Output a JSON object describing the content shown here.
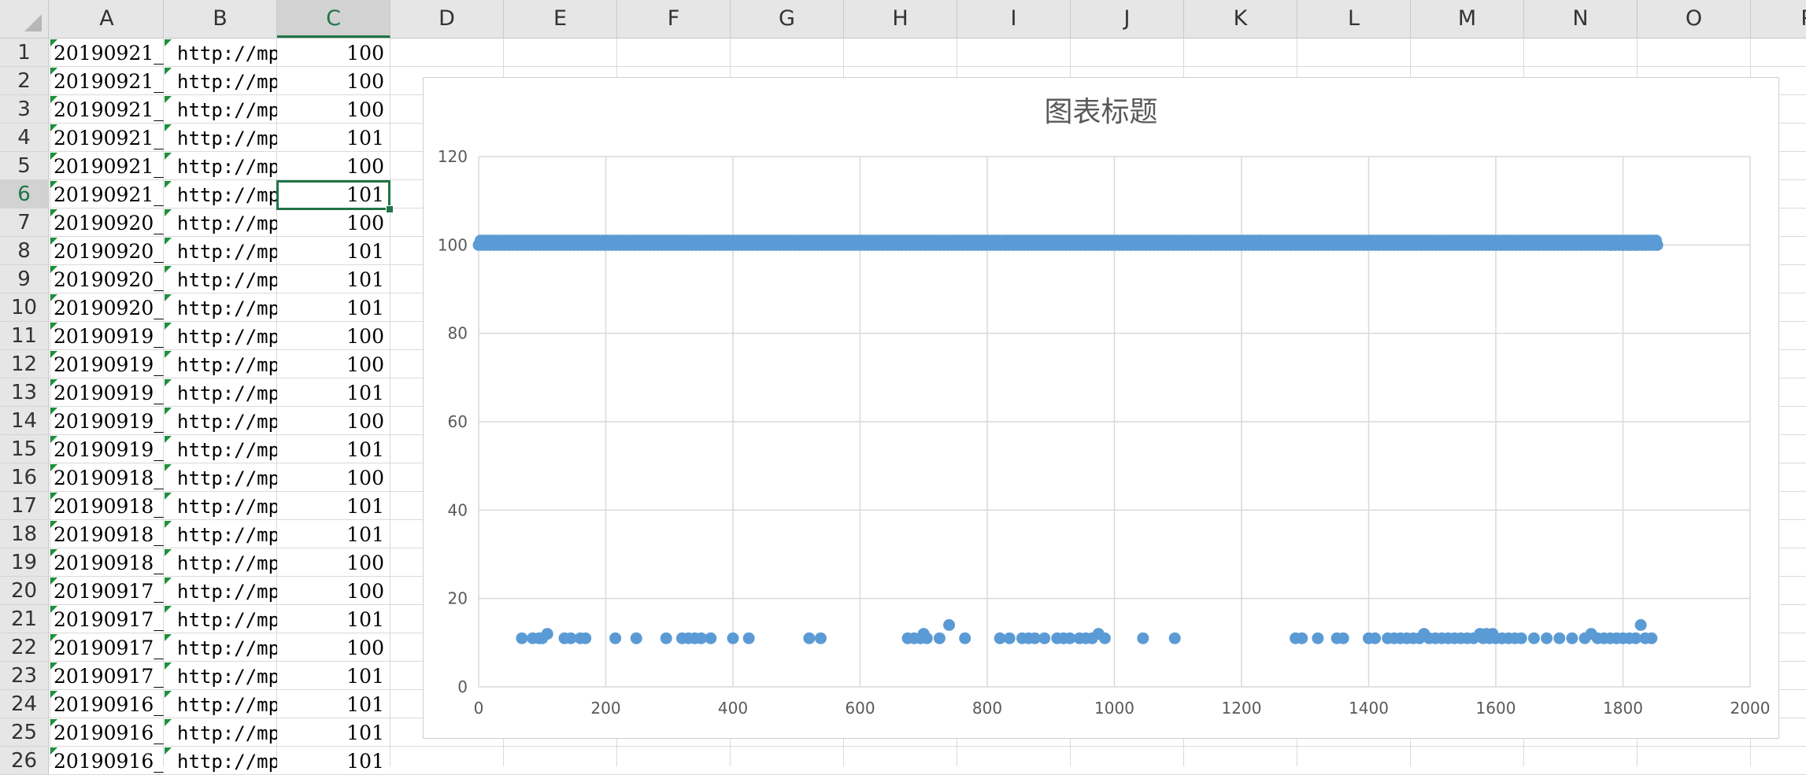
{
  "columns": [
    "A",
    "B",
    "C",
    "D",
    "E",
    "F",
    "G",
    "H",
    "I",
    "J",
    "K",
    "L",
    "M",
    "N",
    "O",
    "P"
  ],
  "selected_column": "C",
  "selected_row": 6,
  "rows": [
    {
      "n": "1",
      "a": "20190921_",
      "b": "http://mp",
      "c": "100"
    },
    {
      "n": "2",
      "a": "20190921_",
      "b": "http://mp",
      "c": "100"
    },
    {
      "n": "3",
      "a": "20190921_",
      "b": "http://mp",
      "c": "100"
    },
    {
      "n": "4",
      "a": "20190921_",
      "b": "http://mp",
      "c": "101"
    },
    {
      "n": "5",
      "a": "20190921_",
      "b": "http://mp",
      "c": "100"
    },
    {
      "n": "6",
      "a": "20190921_",
      "b": "http://mp",
      "c": "101"
    },
    {
      "n": "7",
      "a": "20190920_",
      "b": "http://mp",
      "c": "100"
    },
    {
      "n": "8",
      "a": "20190920_",
      "b": "http://mp",
      "c": "101"
    },
    {
      "n": "9",
      "a": "20190920_",
      "b": "http://mp",
      "c": "101"
    },
    {
      "n": "10",
      "a": "20190920_",
      "b": "http://mp",
      "c": "101"
    },
    {
      "n": "11",
      "a": "20190919_",
      "b": "http://mp",
      "c": "100"
    },
    {
      "n": "12",
      "a": "20190919_",
      "b": "http://mp",
      "c": "100"
    },
    {
      "n": "13",
      "a": "20190919_",
      "b": "http://mp",
      "c": "101"
    },
    {
      "n": "14",
      "a": "20190919_",
      "b": "http://mp",
      "c": "100"
    },
    {
      "n": "15",
      "a": "20190919_",
      "b": "http://mp",
      "c": "101"
    },
    {
      "n": "16",
      "a": "20190918_",
      "b": "http://mp",
      "c": "100"
    },
    {
      "n": "17",
      "a": "20190918_",
      "b": "http://mp",
      "c": "101"
    },
    {
      "n": "18",
      "a": "20190918_",
      "b": "http://mp",
      "c": "101"
    },
    {
      "n": "19",
      "a": "20190918_",
      "b": "http://mp",
      "c": "100"
    },
    {
      "n": "20",
      "a": "20190917_",
      "b": "http://mp",
      "c": "100"
    },
    {
      "n": "21",
      "a": "20190917_",
      "b": "http://mp",
      "c": "101"
    },
    {
      "n": "22",
      "a": "20190917_",
      "b": "http://mp",
      "c": "100"
    },
    {
      "n": "23",
      "a": "20190917_",
      "b": "http://mp",
      "c": "101"
    },
    {
      "n": "24",
      "a": "20190916_",
      "b": "http://mp",
      "c": "101"
    },
    {
      "n": "25",
      "a": "20190916_",
      "b": "http://mp",
      "c": "101"
    },
    {
      "n": "26",
      "a": "20190916_",
      "b": "http://mp",
      "c": "101"
    }
  ],
  "chart_data": {
    "type": "scatter",
    "title": "图表标题",
    "xlabel": "",
    "ylabel": "",
    "xlim": [
      0,
      2000
    ],
    "ylim": [
      0,
      120
    ],
    "x_ticks": [
      0,
      200,
      400,
      600,
      800,
      1000,
      1200,
      1400,
      1600,
      1800,
      2000
    ],
    "y_ticks": [
      0,
      20,
      40,
      60,
      80,
      100,
      120
    ],
    "grid": true,
    "marker_color": "#5b9bd5",
    "upper_band": {
      "x_range": [
        0,
        1855
      ],
      "y_values": [
        100,
        101
      ],
      "note": ""
    },
    "points": [
      {
        "x": 1230,
        "y": 101
      },
      {
        "x": 1780,
        "y": 100
      },
      {
        "x": 1800,
        "y": 100
      },
      {
        "x": 1810,
        "y": 100
      },
      {
        "x": 1820,
        "y": 100
      },
      {
        "x": 1835,
        "y": 100
      },
      {
        "x": 1845,
        "y": 101
      },
      {
        "x": 1852,
        "y": 101
      },
      {
        "x": 68,
        "y": 11
      },
      {
        "x": 85,
        "y": 11
      },
      {
        "x": 95,
        "y": 11
      },
      {
        "x": 100,
        "y": 11
      },
      {
        "x": 108,
        "y": 12
      },
      {
        "x": 135,
        "y": 11
      },
      {
        "x": 145,
        "y": 11
      },
      {
        "x": 160,
        "y": 11
      },
      {
        "x": 168,
        "y": 11
      },
      {
        "x": 215,
        "y": 11
      },
      {
        "x": 248,
        "y": 11
      },
      {
        "x": 295,
        "y": 11
      },
      {
        "x": 320,
        "y": 11
      },
      {
        "x": 330,
        "y": 11
      },
      {
        "x": 340,
        "y": 11
      },
      {
        "x": 350,
        "y": 11
      },
      {
        "x": 365,
        "y": 11
      },
      {
        "x": 400,
        "y": 11
      },
      {
        "x": 425,
        "y": 11
      },
      {
        "x": 520,
        "y": 11
      },
      {
        "x": 538,
        "y": 11
      },
      {
        "x": 675,
        "y": 11
      },
      {
        "x": 685,
        "y": 11
      },
      {
        "x": 695,
        "y": 11
      },
      {
        "x": 700,
        "y": 12
      },
      {
        "x": 705,
        "y": 11
      },
      {
        "x": 725,
        "y": 11
      },
      {
        "x": 740,
        "y": 14
      },
      {
        "x": 765,
        "y": 11
      },
      {
        "x": 820,
        "y": 11
      },
      {
        "x": 835,
        "y": 11
      },
      {
        "x": 855,
        "y": 11
      },
      {
        "x": 865,
        "y": 11
      },
      {
        "x": 875,
        "y": 11
      },
      {
        "x": 890,
        "y": 11
      },
      {
        "x": 910,
        "y": 11
      },
      {
        "x": 920,
        "y": 11
      },
      {
        "x": 930,
        "y": 11
      },
      {
        "x": 945,
        "y": 11
      },
      {
        "x": 955,
        "y": 11
      },
      {
        "x": 965,
        "y": 11
      },
      {
        "x": 975,
        "y": 12
      },
      {
        "x": 985,
        "y": 11
      },
      {
        "x": 1045,
        "y": 11
      },
      {
        "x": 1095,
        "y": 11
      },
      {
        "x": 1285,
        "y": 11
      },
      {
        "x": 1295,
        "y": 11
      },
      {
        "x": 1320,
        "y": 11
      },
      {
        "x": 1350,
        "y": 11
      },
      {
        "x": 1360,
        "y": 11
      },
      {
        "x": 1400,
        "y": 11
      },
      {
        "x": 1410,
        "y": 11
      },
      {
        "x": 1430,
        "y": 11
      },
      {
        "x": 1440,
        "y": 11
      },
      {
        "x": 1450,
        "y": 11
      },
      {
        "x": 1460,
        "y": 11
      },
      {
        "x": 1470,
        "y": 11
      },
      {
        "x": 1480,
        "y": 11
      },
      {
        "x": 1487,
        "y": 12
      },
      {
        "x": 1495,
        "y": 11
      },
      {
        "x": 1505,
        "y": 11
      },
      {
        "x": 1515,
        "y": 11
      },
      {
        "x": 1525,
        "y": 11
      },
      {
        "x": 1535,
        "y": 11
      },
      {
        "x": 1545,
        "y": 11
      },
      {
        "x": 1555,
        "y": 11
      },
      {
        "x": 1565,
        "y": 11
      },
      {
        "x": 1575,
        "y": 12
      },
      {
        "x": 1580,
        "y": 11
      },
      {
        "x": 1585,
        "y": 12
      },
      {
        "x": 1590,
        "y": 11
      },
      {
        "x": 1595,
        "y": 12
      },
      {
        "x": 1600,
        "y": 11
      },
      {
        "x": 1610,
        "y": 11
      },
      {
        "x": 1620,
        "y": 11
      },
      {
        "x": 1630,
        "y": 11
      },
      {
        "x": 1640,
        "y": 11
      },
      {
        "x": 1660,
        "y": 11
      },
      {
        "x": 1680,
        "y": 11
      },
      {
        "x": 1700,
        "y": 11
      },
      {
        "x": 1720,
        "y": 11
      },
      {
        "x": 1740,
        "y": 11
      },
      {
        "x": 1750,
        "y": 12
      },
      {
        "x": 1760,
        "y": 11
      },
      {
        "x": 1770,
        "y": 11
      },
      {
        "x": 1780,
        "y": 11
      },
      {
        "x": 1790,
        "y": 11
      },
      {
        "x": 1800,
        "y": 11
      },
      {
        "x": 1810,
        "y": 11
      },
      {
        "x": 1820,
        "y": 11
      },
      {
        "x": 1828,
        "y": 14
      },
      {
        "x": 1835,
        "y": 11
      },
      {
        "x": 1845,
        "y": 11
      }
    ]
  }
}
